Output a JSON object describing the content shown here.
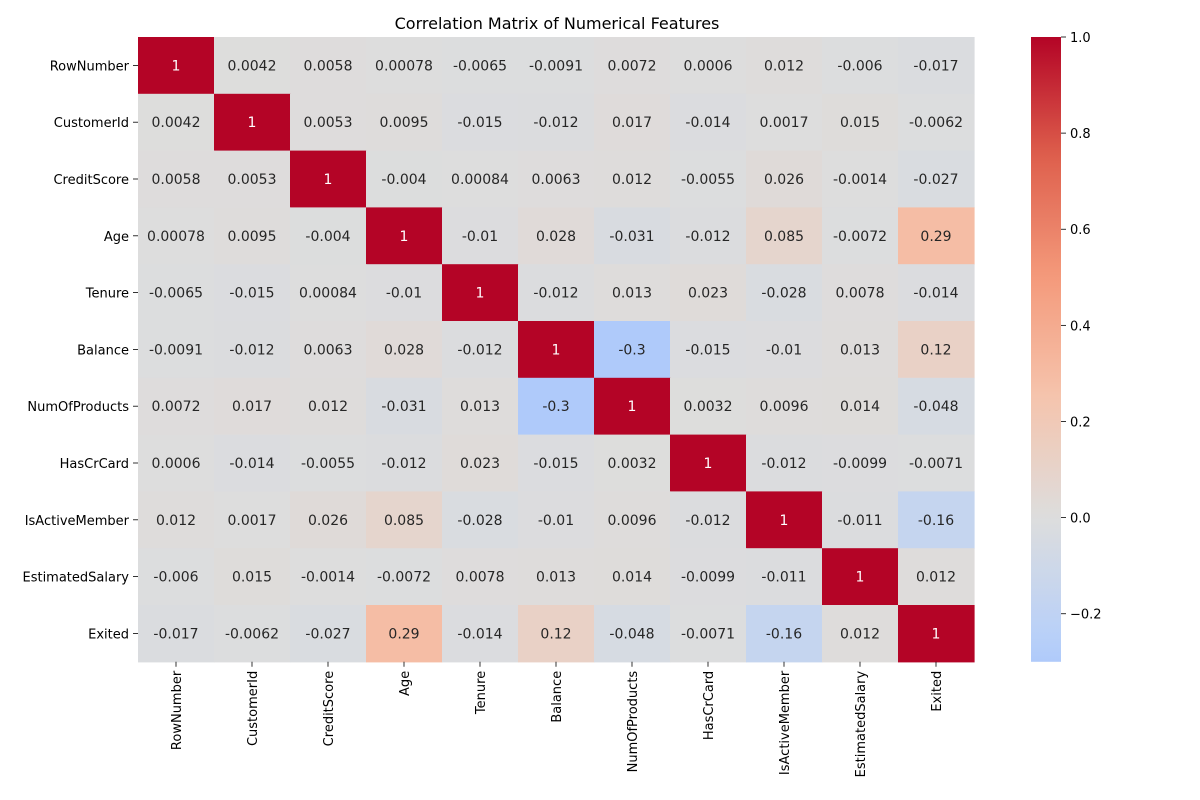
{
  "chart_data": {
    "type": "heatmap",
    "title": "Correlation Matrix of Numerical Features",
    "rows": [
      "RowNumber",
      "CustomerId",
      "CreditScore",
      "Age",
      "Tenure",
      "Balance",
      "NumOfProducts",
      "HasCrCard",
      "IsActiveMember",
      "EstimatedSalary",
      "Exited"
    ],
    "cols": [
      "RowNumber",
      "CustomerId",
      "CreditScore",
      "Age",
      "Tenure",
      "Balance",
      "NumOfProducts",
      "HasCrCard",
      "IsActiveMember",
      "EstimatedSalary",
      "Exited"
    ],
    "labels": [
      [
        "1",
        "0.0042",
        "0.0058",
        "0.00078",
        "-0.0065",
        "-0.0091",
        "0.0072",
        "0.0006",
        "0.012",
        "-0.006",
        "-0.017"
      ],
      [
        "0.0042",
        "1",
        "0.0053",
        "0.0095",
        "-0.015",
        "-0.012",
        "0.017",
        "-0.014",
        "0.0017",
        "0.015",
        "-0.0062"
      ],
      [
        "0.0058",
        "0.0053",
        "1",
        "-0.004",
        "0.00084",
        "0.0063",
        "0.012",
        "-0.0055",
        "0.026",
        "-0.0014",
        "-0.027"
      ],
      [
        "0.00078",
        "0.0095",
        "-0.004",
        "1",
        "-0.01",
        "0.028",
        "-0.031",
        "-0.012",
        "0.085",
        "-0.0072",
        "0.29"
      ],
      [
        "-0.0065",
        "-0.015",
        "0.00084",
        "-0.01",
        "1",
        "-0.012",
        "0.013",
        "0.023",
        "-0.028",
        "0.0078",
        "-0.014"
      ],
      [
        "-0.0091",
        "-0.012",
        "0.0063",
        "0.028",
        "-0.012",
        "1",
        "-0.3",
        "-0.015",
        "-0.01",
        "0.013",
        "0.12"
      ],
      [
        "0.0072",
        "0.017",
        "0.012",
        "-0.031",
        "0.013",
        "-0.3",
        "1",
        "0.0032",
        "0.0096",
        "0.014",
        "-0.048"
      ],
      [
        "0.0006",
        "-0.014",
        "-0.0055",
        "-0.012",
        "0.023",
        "-0.015",
        "0.0032",
        "1",
        "-0.012",
        "-0.0099",
        "-0.0071"
      ],
      [
        "0.012",
        "0.0017",
        "0.026",
        "0.085",
        "-0.028",
        "-0.01",
        "0.0096",
        "-0.012",
        "1",
        "-0.011",
        "-0.16"
      ],
      [
        "-0.006",
        "0.015",
        "-0.0014",
        "-0.0072",
        "0.0078",
        "0.013",
        "0.014",
        "-0.0099",
        "-0.011",
        "1",
        "0.012"
      ],
      [
        "-0.017",
        "-0.0062",
        "-0.027",
        "0.29",
        "-0.014",
        "0.12",
        "-0.048",
        "-0.0071",
        "-0.16",
        "0.012",
        "1"
      ]
    ],
    "colorbar": {
      "min": -0.3,
      "max": 1.0,
      "center": 0.0,
      "colormap": "coolwarm",
      "ticks": [
        -0.2,
        0.0,
        0.2,
        0.4,
        0.6,
        0.8,
        1.0
      ],
      "tick_labels": [
        "−0.2",
        "0.0",
        "0.2",
        "0.4",
        "0.6",
        "0.8",
        "1.0"
      ]
    }
  }
}
